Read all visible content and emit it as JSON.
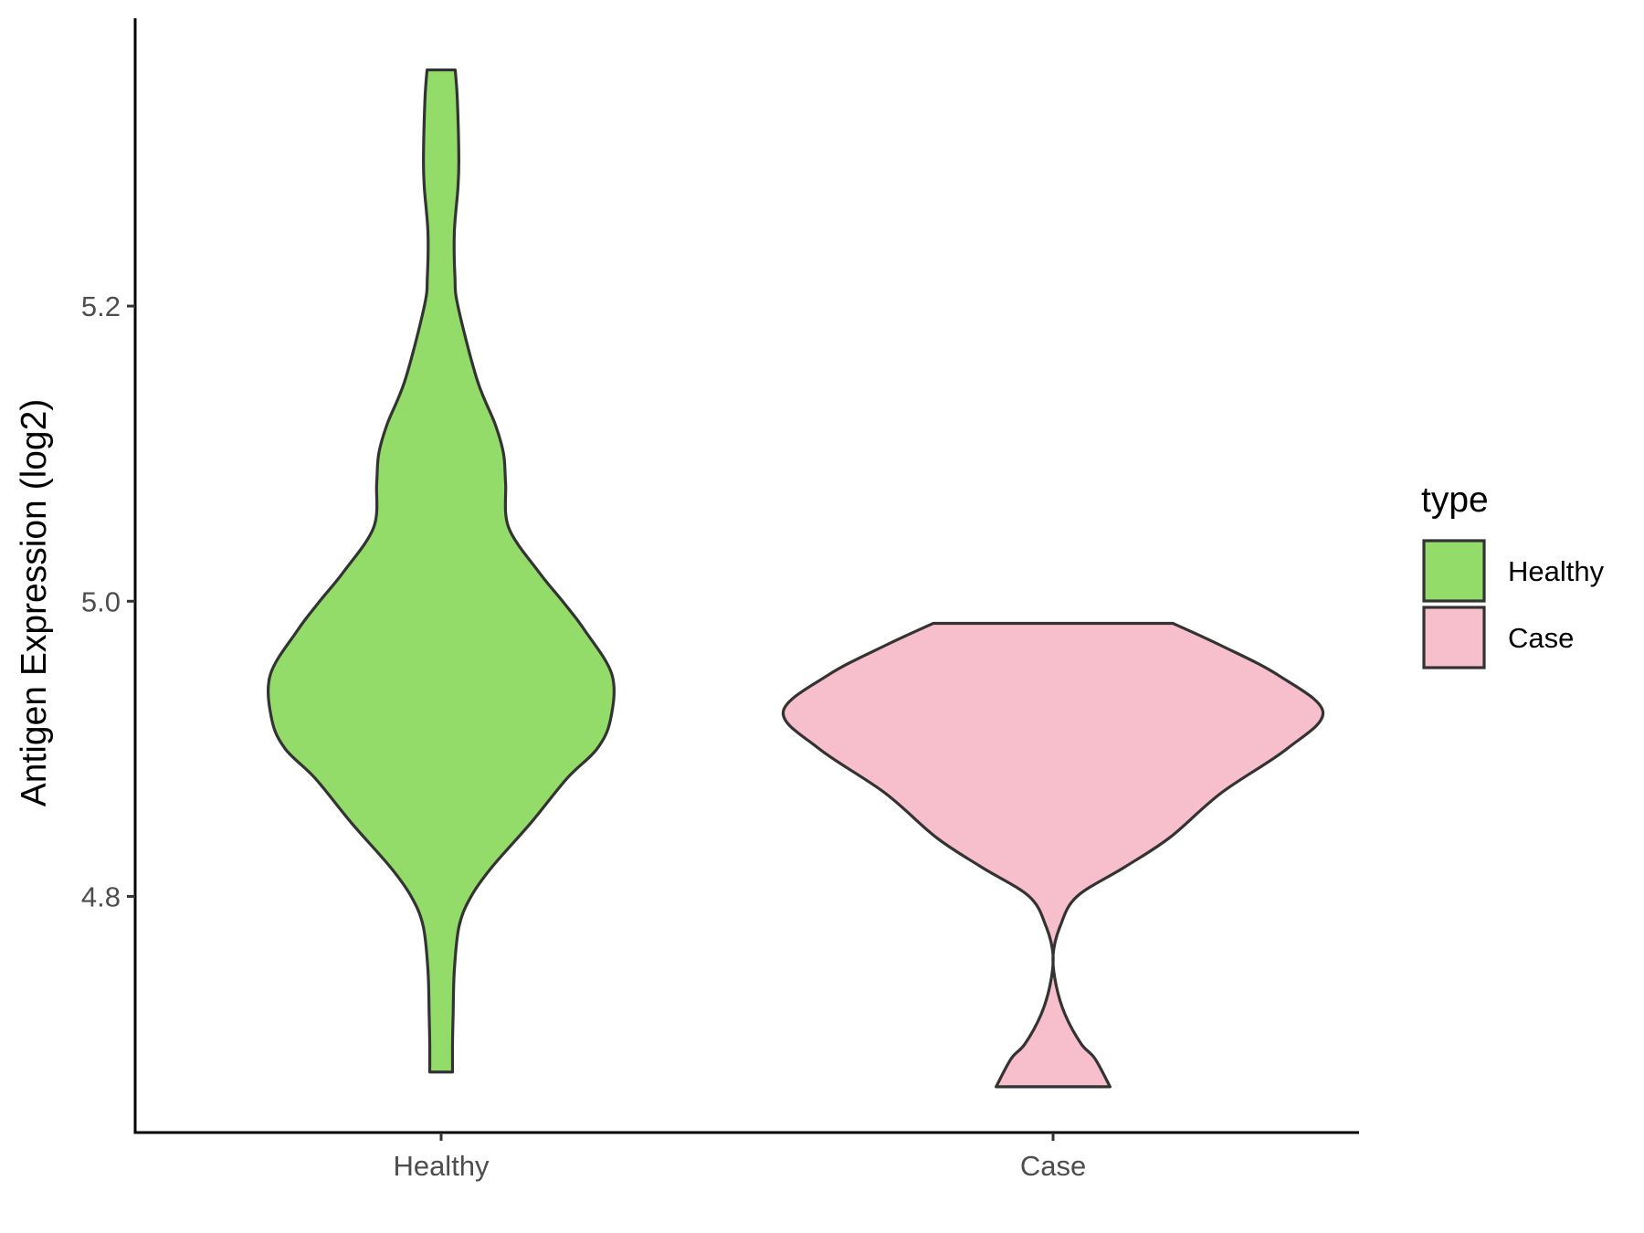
{
  "chart_data": {
    "type": "violin",
    "title": "",
    "xlabel": "",
    "ylabel": "Antigen Expression (log2)",
    "categories": [
      "Healthy",
      "Case"
    ],
    "y_ticks": [
      "4.8",
      "5.0",
      "5.2"
    ],
    "ylim": [
      4.64,
      5.395
    ],
    "grid": false,
    "legend": {
      "title": "type",
      "position": "right",
      "entries": [
        {
          "label": "Healthy",
          "color": "#93DC6A"
        },
        {
          "label": "Case",
          "color": "#F7BFCB"
        }
      ]
    },
    "series": [
      {
        "category": "Healthy",
        "color": "#93DC6A",
        "y_min": 4.681,
        "y_max": 5.36,
        "density_profile": [
          [
            5.36,
            0.047
          ],
          [
            5.34,
            0.054
          ],
          [
            5.3,
            0.059
          ],
          [
            5.28,
            0.056
          ],
          [
            5.25,
            0.044
          ],
          [
            5.22,
            0.046
          ],
          [
            5.2,
            0.056
          ],
          [
            5.15,
            0.12
          ],
          [
            5.12,
            0.18
          ],
          [
            5.1,
            0.208
          ],
          [
            5.08,
            0.215
          ],
          [
            5.05,
            0.225
          ],
          [
            5.02,
            0.325
          ],
          [
            5.0,
            0.405
          ],
          [
            4.98,
            0.48
          ],
          [
            4.95,
            0.57
          ],
          [
            4.92,
            0.565
          ],
          [
            4.9,
            0.52
          ],
          [
            4.88,
            0.42
          ],
          [
            4.85,
            0.3
          ],
          [
            4.82,
            0.17
          ],
          [
            4.8,
            0.1
          ],
          [
            4.78,
            0.06
          ],
          [
            4.75,
            0.044
          ],
          [
            4.72,
            0.04
          ],
          [
            4.7,
            0.038
          ],
          [
            4.681,
            0.038
          ]
        ]
      },
      {
        "category": "Case",
        "color": "#F7BFCB",
        "y_min": 4.671,
        "y_max": 4.985,
        "density_profile": [
          [
            4.985,
            0.4
          ],
          [
            4.97,
            0.56
          ],
          [
            4.95,
            0.75
          ],
          [
            4.925,
            0.9
          ],
          [
            4.9,
            0.78
          ],
          [
            4.87,
            0.56
          ],
          [
            4.84,
            0.39
          ],
          [
            4.82,
            0.24
          ],
          [
            4.8,
            0.08
          ],
          [
            4.78,
            0.024
          ],
          [
            4.76,
            0.0
          ],
          [
            4.74,
            0.01
          ],
          [
            4.72,
            0.04
          ],
          [
            4.7,
            0.094
          ],
          [
            4.69,
            0.14
          ],
          [
            4.671,
            0.19
          ]
        ]
      }
    ]
  }
}
